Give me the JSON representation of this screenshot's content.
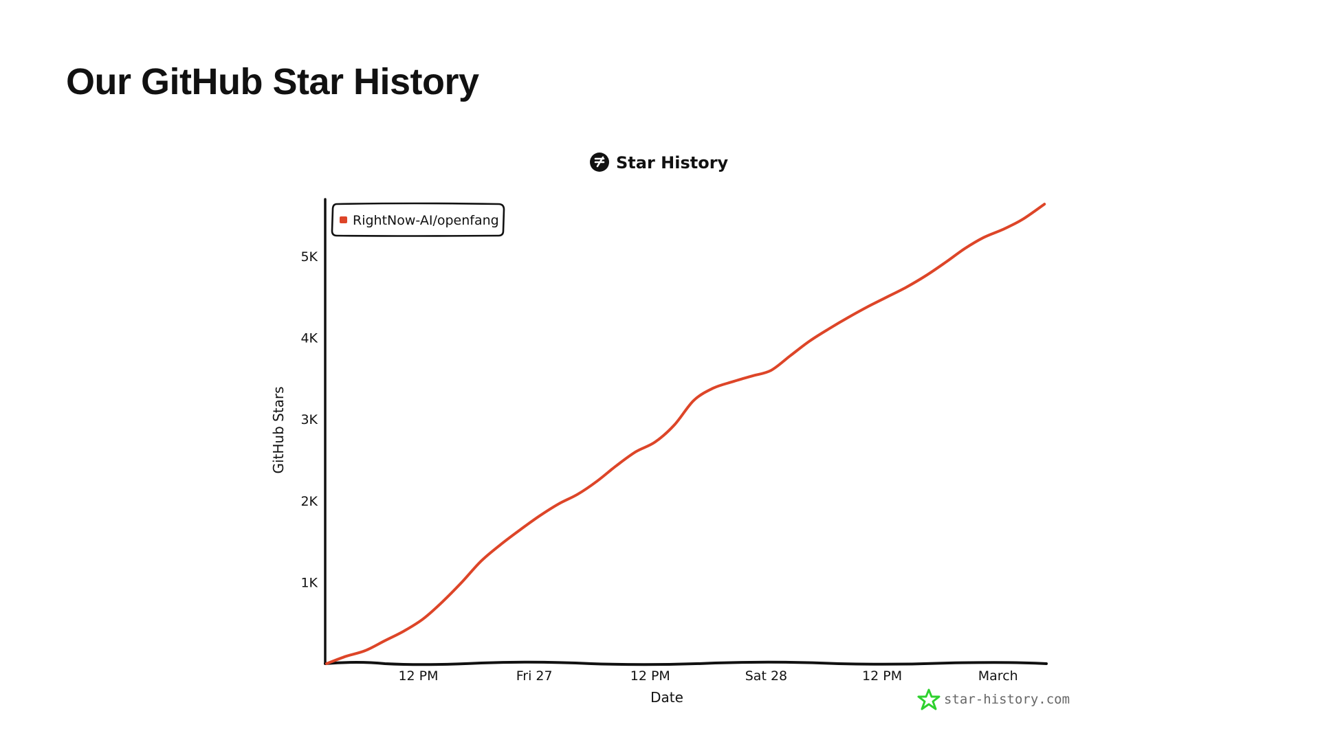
{
  "page": {
    "title": "Our GitHub Star History"
  },
  "colors": {
    "series": "#dd4528",
    "axis": "#111111",
    "watermark_icon": "#2ed12e"
  },
  "icons": {
    "title_logo": "star-history-logo-icon",
    "watermark_logo": "star-outline-icon"
  },
  "chart_data": {
    "type": "line",
    "title": "Star History",
    "xlabel": "Date",
    "ylabel": "GitHub Stars",
    "legend": {
      "placement": "top-left",
      "entries": [
        "RightNow-AI/openfang"
      ]
    },
    "grid": false,
    "x_tick_labels": [
      "12 PM",
      "Fri 27",
      "12 PM",
      "Sat 28",
      "12 PM",
      "March"
    ],
    "x_tick_values": [
      12,
      24,
      36,
      48,
      60,
      72
    ],
    "x_unit": "hours since midnight of Thu 26",
    "xlim": [
      2.5,
      77
    ],
    "y_tick_labels": [
      "1K",
      "2K",
      "3K",
      "4K",
      "5K"
    ],
    "y_tick_values": [
      1000,
      2000,
      3000,
      4000,
      5000
    ],
    "ylim": [
      0,
      5700
    ],
    "series": [
      {
        "name": "RightNow-AI/openfang",
        "x": [
          2.5,
          4.5,
          6.5,
          8.5,
          10.5,
          12.5,
          14.5,
          16.5,
          18.5,
          20.5,
          22.5,
          24.5,
          26.5,
          28.5,
          30.5,
          32.5,
          34.5,
          36.5,
          38.5,
          40.5,
          42.5,
          44.5,
          46.5,
          48.5,
          50.5,
          52.5,
          54.5,
          56.5,
          58.5,
          60.5,
          62.5,
          64.5,
          66.5,
          68.5,
          70.5,
          72.5,
          74.5,
          76.8
        ],
        "y": [
          0,
          90,
          160,
          280,
          400,
          550,
          760,
          1000,
          1260,
          1460,
          1640,
          1810,
          1960,
          2080,
          2240,
          2430,
          2600,
          2720,
          2930,
          3230,
          3380,
          3460,
          3530,
          3600,
          3780,
          3960,
          4110,
          4250,
          4380,
          4500,
          4620,
          4760,
          4920,
          5090,
          5230,
          5330,
          5450,
          5640
        ]
      }
    ]
  },
  "watermark": {
    "text": "star-history.com"
  }
}
